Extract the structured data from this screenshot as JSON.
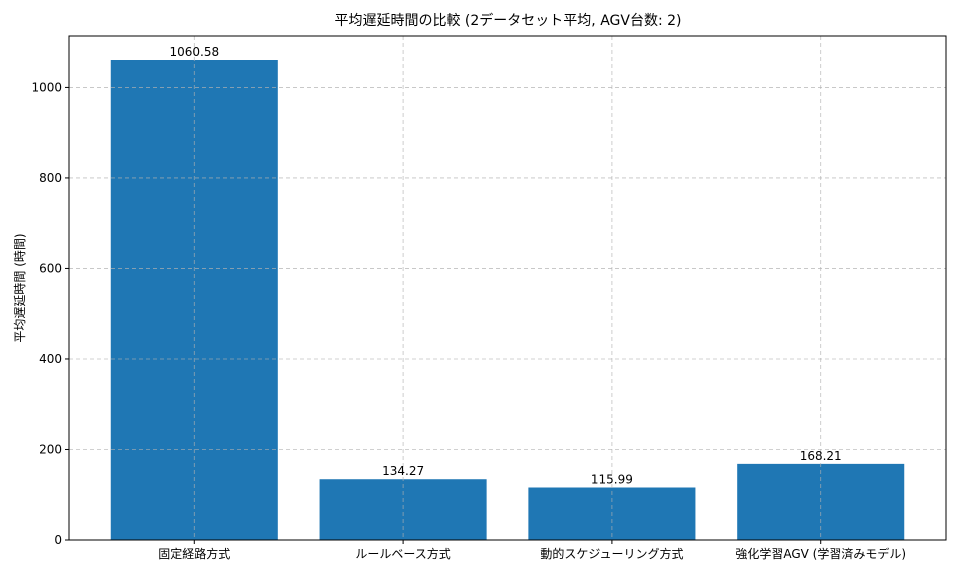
{
  "chart_data": {
    "type": "bar",
    "title": "平均遅延時間の比較 (2データセット平均, AGV台数: 2)",
    "xlabel": "",
    "ylabel": "平均遅延時間 (時間)",
    "categories": [
      "固定経路方式",
      "ルールベース方式",
      "動的スケジューリング方式",
      "強化学習AGV (学習済みモデル)"
    ],
    "values": [
      1060.58,
      134.27,
      115.99,
      168.21
    ],
    "value_labels": [
      "1060.58",
      "134.27",
      "115.99",
      "168.21"
    ],
    "ylim": [
      0,
      1113.61
    ],
    "yticks": [
      0,
      200,
      400,
      600,
      800,
      1000
    ],
    "ytick_labels": [
      "0",
      "200",
      "400",
      "600",
      "800",
      "1000"
    ],
    "grid": true,
    "bar_color": "#1f77b4"
  }
}
